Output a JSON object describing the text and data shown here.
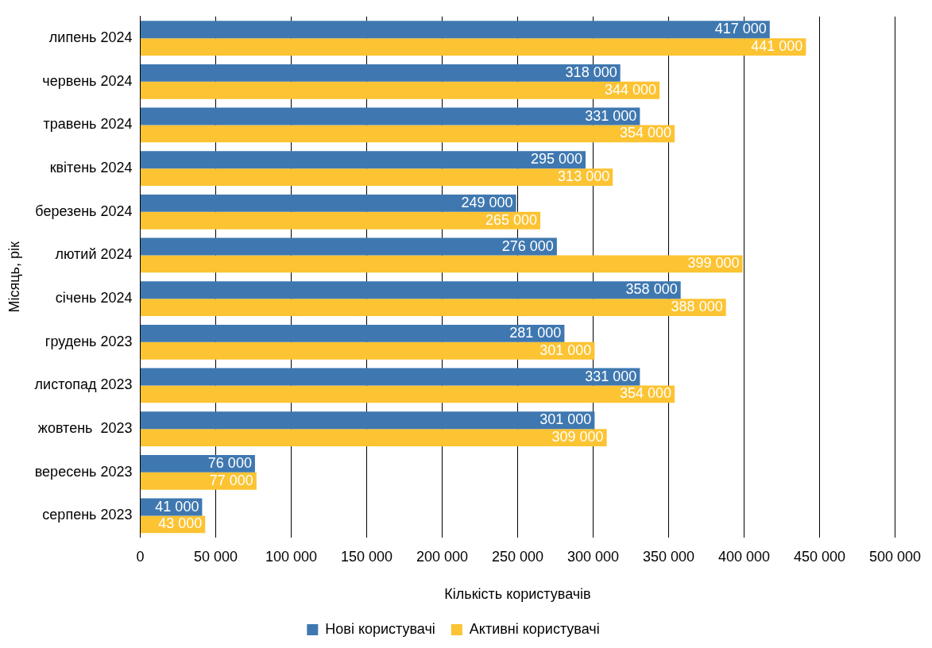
{
  "chart_data": {
    "type": "bar",
    "orientation": "horizontal",
    "categories": [
      "липень 2024",
      "червень 2024",
      "травень 2024",
      "квітень 2024",
      "березень 2024",
      "лютий 2024",
      "січень 2024",
      "грудень 2023",
      "листопад 2023",
      "жовтень  2023",
      "вересень 2023",
      "серпень 2023"
    ],
    "series": [
      {
        "name": "Нові користувачі",
        "color": "#3f78b0",
        "values": [
          417000,
          318000,
          331000,
          295000,
          249000,
          276000,
          358000,
          281000,
          331000,
          301000,
          76000,
          41000
        ],
        "value_labels": [
          "417 000",
          "318 000",
          "331 000",
          "295 000",
          "249 000",
          "276 000",
          "358 000",
          "281 000",
          "331 000",
          "301 000",
          "76 000",
          "41 000"
        ]
      },
      {
        "name": "Активні користувачі",
        "color": "#fcc332",
        "values": [
          441000,
          344000,
          354000,
          313000,
          265000,
          399000,
          388000,
          301000,
          354000,
          309000,
          77000,
          43000
        ],
        "value_labels": [
          "441 000",
          "344 000",
          "354 000",
          "313 000",
          "265 000",
          "399 000",
          "388 000",
          "301 000",
          "354 000",
          "309 000",
          "77 000",
          "43 000"
        ]
      }
    ],
    "xlim": [
      0,
      500000
    ],
    "xticks": [
      0,
      {
        "value": 50000,
        "label": "50 000"
      },
      {
        "value": 100000,
        "label": "100 000"
      },
      {
        "value": 150000,
        "label": "150 000"
      },
      {
        "value": 200000,
        "label": "200 000"
      },
      {
        "value": 250000,
        "label": "250 000"
      },
      {
        "value": 300000,
        "label": "300 000"
      },
      {
        "value": 350000,
        "label": "350 000"
      },
      {
        "value": 400000,
        "label": "400 000"
      },
      {
        "value": 450000,
        "label": "450 000"
      },
      {
        "value": 500000,
        "label": "500 000"
      }
    ],
    "xlabel": "Кількість користувачів",
    "ylabel": "Місяць, рік",
    "grid": "x",
    "legend": "bottom"
  }
}
